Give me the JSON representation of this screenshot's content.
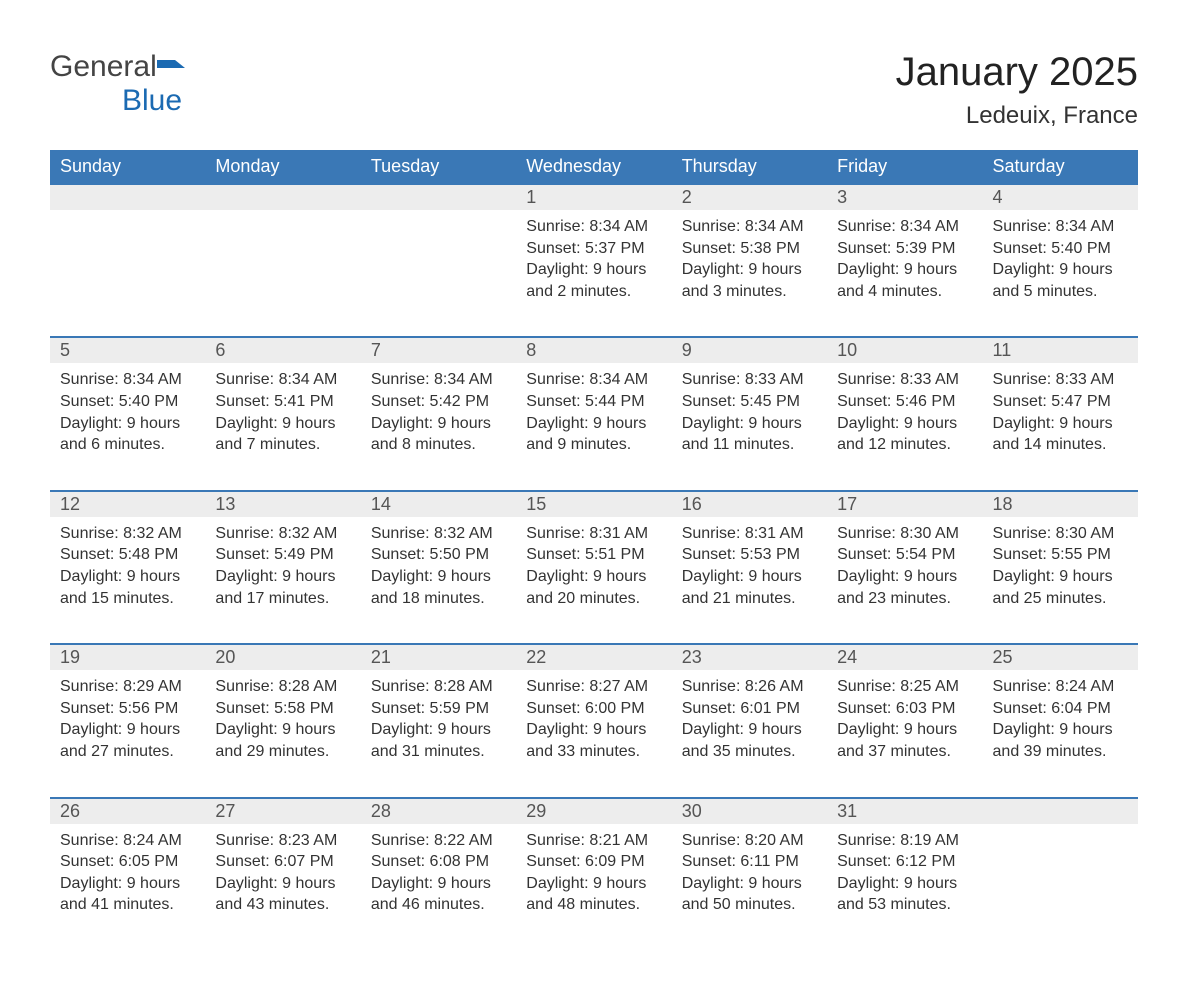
{
  "brand": {
    "part1": "General",
    "part2": "Blue",
    "color1": "#444444",
    "color2": "#1b6ab2"
  },
  "title": "January 2025",
  "location": "Ledeuix, France",
  "colors": {
    "header_bg": "#3a78b6",
    "header_text": "#ffffff",
    "stripe_bg": "#ededed",
    "stripe_border": "#3a78b6",
    "body_text": "#333333",
    "page_bg": "#ffffff"
  },
  "fonts": {
    "title_pt": 40,
    "subtitle_pt": 24,
    "header_pt": 18,
    "daynum_pt": 18,
    "cell_pt": 16
  },
  "days_of_week": [
    "Sunday",
    "Monday",
    "Tuesday",
    "Wednesday",
    "Thursday",
    "Friday",
    "Saturday"
  ],
  "weeks": [
    [
      null,
      null,
      null,
      {
        "n": "1",
        "sunrise": "8:34 AM",
        "sunset": "5:37 PM",
        "daylight": "9 hours and 2 minutes."
      },
      {
        "n": "2",
        "sunrise": "8:34 AM",
        "sunset": "5:38 PM",
        "daylight": "9 hours and 3 minutes."
      },
      {
        "n": "3",
        "sunrise": "8:34 AM",
        "sunset": "5:39 PM",
        "daylight": "9 hours and 4 minutes."
      },
      {
        "n": "4",
        "sunrise": "8:34 AM",
        "sunset": "5:40 PM",
        "daylight": "9 hours and 5 minutes."
      }
    ],
    [
      {
        "n": "5",
        "sunrise": "8:34 AM",
        "sunset": "5:40 PM",
        "daylight": "9 hours and 6 minutes."
      },
      {
        "n": "6",
        "sunrise": "8:34 AM",
        "sunset": "5:41 PM",
        "daylight": "9 hours and 7 minutes."
      },
      {
        "n": "7",
        "sunrise": "8:34 AM",
        "sunset": "5:42 PM",
        "daylight": "9 hours and 8 minutes."
      },
      {
        "n": "8",
        "sunrise": "8:34 AM",
        "sunset": "5:44 PM",
        "daylight": "9 hours and 9 minutes."
      },
      {
        "n": "9",
        "sunrise": "8:33 AM",
        "sunset": "5:45 PM",
        "daylight": "9 hours and 11 minutes."
      },
      {
        "n": "10",
        "sunrise": "8:33 AM",
        "sunset": "5:46 PM",
        "daylight": "9 hours and 12 minutes."
      },
      {
        "n": "11",
        "sunrise": "8:33 AM",
        "sunset": "5:47 PM",
        "daylight": "9 hours and 14 minutes."
      }
    ],
    [
      {
        "n": "12",
        "sunrise": "8:32 AM",
        "sunset": "5:48 PM",
        "daylight": "9 hours and 15 minutes."
      },
      {
        "n": "13",
        "sunrise": "8:32 AM",
        "sunset": "5:49 PM",
        "daylight": "9 hours and 17 minutes."
      },
      {
        "n": "14",
        "sunrise": "8:32 AM",
        "sunset": "5:50 PM",
        "daylight": "9 hours and 18 minutes."
      },
      {
        "n": "15",
        "sunrise": "8:31 AM",
        "sunset": "5:51 PM",
        "daylight": "9 hours and 20 minutes."
      },
      {
        "n": "16",
        "sunrise": "8:31 AM",
        "sunset": "5:53 PM",
        "daylight": "9 hours and 21 minutes."
      },
      {
        "n": "17",
        "sunrise": "8:30 AM",
        "sunset": "5:54 PM",
        "daylight": "9 hours and 23 minutes."
      },
      {
        "n": "18",
        "sunrise": "8:30 AM",
        "sunset": "5:55 PM",
        "daylight": "9 hours and 25 minutes."
      }
    ],
    [
      {
        "n": "19",
        "sunrise": "8:29 AM",
        "sunset": "5:56 PM",
        "daylight": "9 hours and 27 minutes."
      },
      {
        "n": "20",
        "sunrise": "8:28 AM",
        "sunset": "5:58 PM",
        "daylight": "9 hours and 29 minutes."
      },
      {
        "n": "21",
        "sunrise": "8:28 AM",
        "sunset": "5:59 PM",
        "daylight": "9 hours and 31 minutes."
      },
      {
        "n": "22",
        "sunrise": "8:27 AM",
        "sunset": "6:00 PM",
        "daylight": "9 hours and 33 minutes."
      },
      {
        "n": "23",
        "sunrise": "8:26 AM",
        "sunset": "6:01 PM",
        "daylight": "9 hours and 35 minutes."
      },
      {
        "n": "24",
        "sunrise": "8:25 AM",
        "sunset": "6:03 PM",
        "daylight": "9 hours and 37 minutes."
      },
      {
        "n": "25",
        "sunrise": "8:24 AM",
        "sunset": "6:04 PM",
        "daylight": "9 hours and 39 minutes."
      }
    ],
    [
      {
        "n": "26",
        "sunrise": "8:24 AM",
        "sunset": "6:05 PM",
        "daylight": "9 hours and 41 minutes."
      },
      {
        "n": "27",
        "sunrise": "8:23 AM",
        "sunset": "6:07 PM",
        "daylight": "9 hours and 43 minutes."
      },
      {
        "n": "28",
        "sunrise": "8:22 AM",
        "sunset": "6:08 PM",
        "daylight": "9 hours and 46 minutes."
      },
      {
        "n": "29",
        "sunrise": "8:21 AM",
        "sunset": "6:09 PM",
        "daylight": "9 hours and 48 minutes."
      },
      {
        "n": "30",
        "sunrise": "8:20 AM",
        "sunset": "6:11 PM",
        "daylight": "9 hours and 50 minutes."
      },
      {
        "n": "31",
        "sunrise": "8:19 AM",
        "sunset": "6:12 PM",
        "daylight": "9 hours and 53 minutes."
      },
      null
    ]
  ],
  "labels": {
    "sunrise": "Sunrise: ",
    "sunset": "Sunset: ",
    "daylight": "Daylight: "
  }
}
